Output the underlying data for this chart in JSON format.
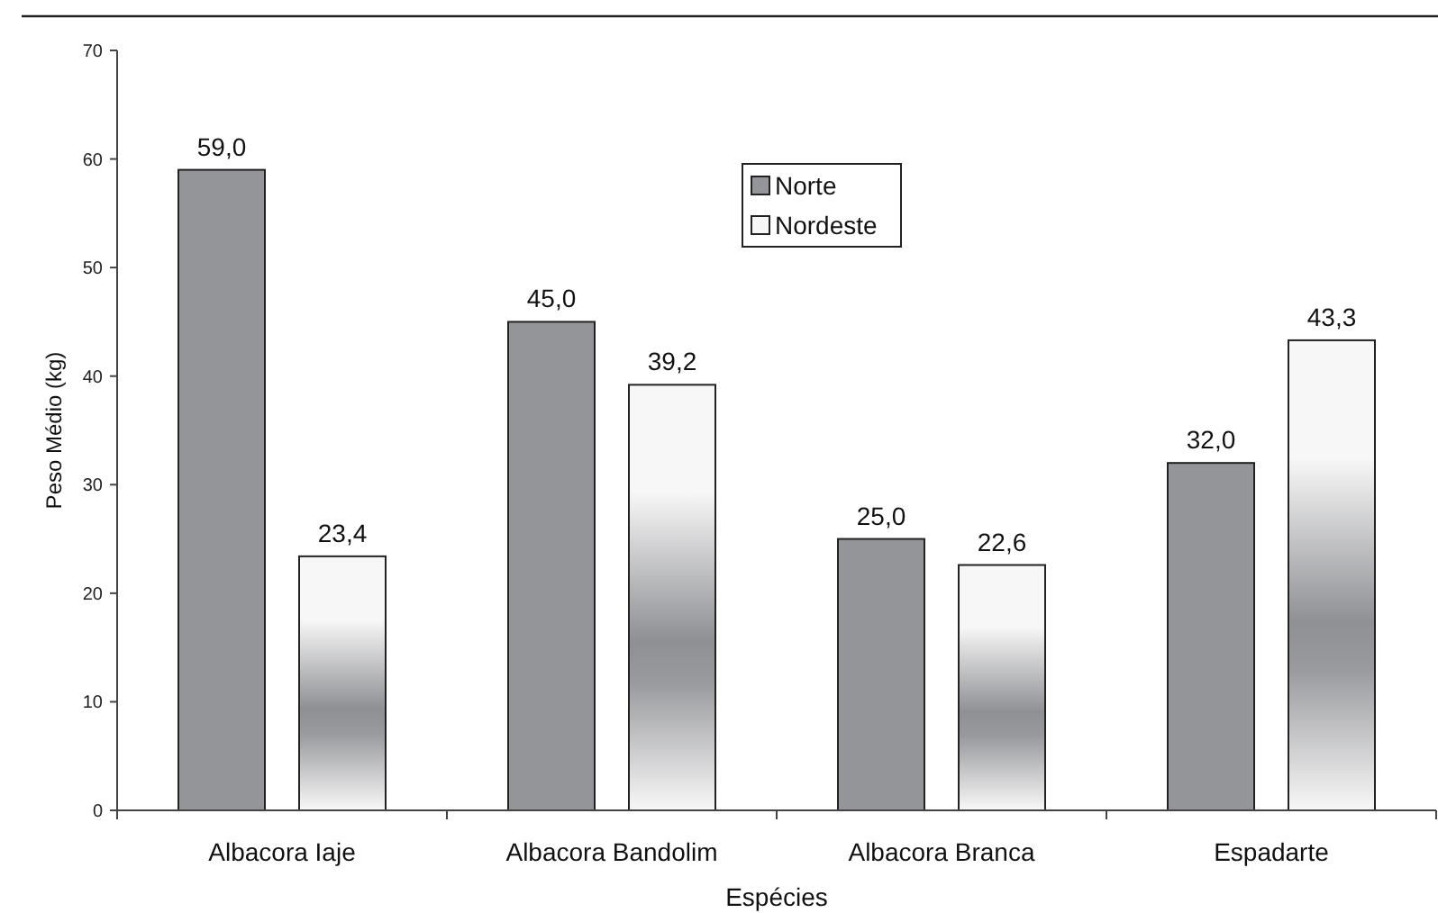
{
  "chart_data": {
    "type": "bar",
    "xlabel": "Espécies",
    "ylabel": "Peso Médio (kg)",
    "categories": [
      "Albacora Iaje",
      "Albacora Bandolim",
      "Albacora Branca",
      "Espadarte"
    ],
    "series": [
      {
        "name": "Norte",
        "color": "#939598",
        "values": [
          59.0,
          45.0,
          25.0,
          32.0
        ],
        "value_labels": [
          "59,0",
          "45,0",
          "25,0",
          "32,0"
        ]
      },
      {
        "name": "Nordeste",
        "color": "#f7f7f7",
        "values": [
          23.4,
          39.2,
          22.6,
          43.3
        ],
        "value_labels": [
          "23,4",
          "39,2",
          "22,6",
          "43,3"
        ]
      }
    ],
    "ylim": [
      0,
      70
    ],
    "yticks": [
      0,
      10,
      20,
      30,
      40,
      50,
      60,
      70
    ],
    "grid": false,
    "legend": "top"
  }
}
